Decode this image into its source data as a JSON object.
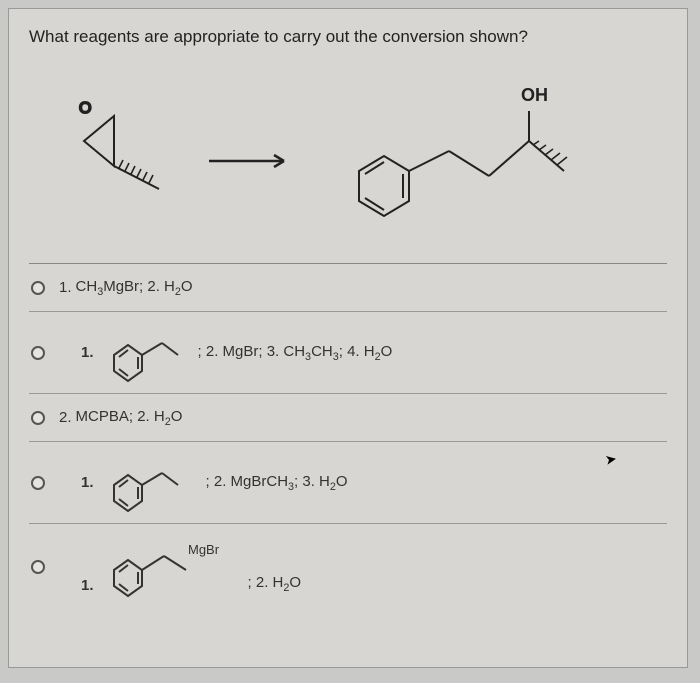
{
  "question": "What reagents are appropriate to carry out the conversion shown?",
  "reaction": {
    "reactant_oxygen_label": "O",
    "product_oh_label": "OH",
    "arrow": "→"
  },
  "options": [
    {
      "prefix": "1.",
      "text_html": "CH<sub class='sub'>3</sub>MgBr; 2. H<sub class='sub'>2</sub>O",
      "has_structure": false
    },
    {
      "prefix": "1.",
      "text_html": "; 2. MgBr; 3. CH<sub class='sub'>3</sub>CH<sub class='sub'>3</sub>; 4. H<sub class='sub'>2</sub>O",
      "has_structure": true,
      "structure": "benzyl"
    },
    {
      "prefix": "2.",
      "text_html": "MCPBA; 2. H<sub class='sub'>2</sub>O",
      "has_structure": false
    },
    {
      "prefix": "1.",
      "text_html": "; 2. MgBrCH<sub class='sub'>3</sub>; 3. H<sub class='sub'>2</sub>O",
      "has_structure": true,
      "structure": "benzyl"
    },
    {
      "prefix": "1.",
      "text_html": "; 2. H<sub class='sub'>2</sub>O",
      "has_structure": true,
      "structure": "benzylMgBr",
      "mgbr_label": "MgBr"
    }
  ],
  "colors": {
    "page_bg": "#d8d6d2",
    "body_bg": "#c9c9c7",
    "text": "#222",
    "border": "#999",
    "radio_border": "#555"
  },
  "typography": {
    "question_fontsize": 17,
    "option_fontsize": 15
  }
}
